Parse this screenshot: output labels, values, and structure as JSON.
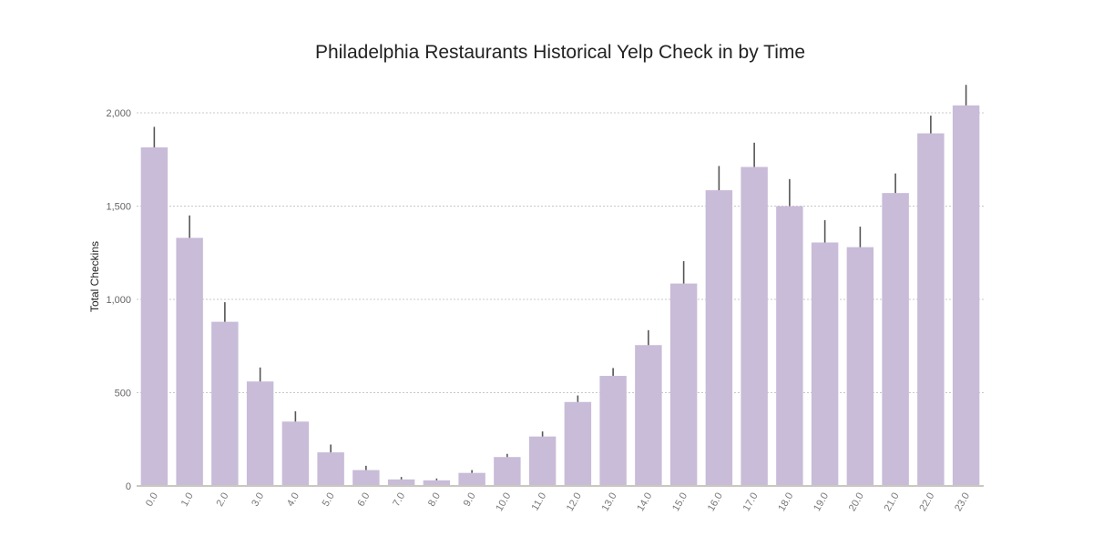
{
  "chart_data": {
    "type": "bar",
    "title": "Philadelphia Restaurants Historical Yelp Check in by Time",
    "xlabel": "",
    "ylabel": "Total Checkins",
    "categories": [
      "0.0",
      "1.0",
      "2.0",
      "3.0",
      "4.0",
      "5.0",
      "6.0",
      "7.0",
      "8.0",
      "9.0",
      "10.0",
      "11.0",
      "12.0",
      "13.0",
      "14.0",
      "15.0",
      "16.0",
      "17.0",
      "18.0",
      "19.0",
      "20.0",
      "21.0",
      "22.0",
      "23.0"
    ],
    "values": [
      1815,
      1330,
      880,
      560,
      345,
      180,
      85,
      35,
      30,
      70,
      155,
      265,
      450,
      590,
      755,
      1085,
      1585,
      1710,
      1500,
      1305,
      1280,
      1570,
      1890,
      2040
    ],
    "error_upper": [
      1925,
      1450,
      985,
      635,
      400,
      222,
      108,
      48,
      40,
      85,
      172,
      292,
      485,
      632,
      835,
      1205,
      1715,
      1840,
      1645,
      1425,
      1390,
      1675,
      1985,
      2150
    ],
    "yticks": [
      "0",
      "500",
      "1,000",
      "1,500",
      "2,000"
    ],
    "ytick_values": [
      0,
      500,
      1000,
      1500,
      2000
    ],
    "ylim": [
      0,
      2000
    ],
    "grid": true,
    "bar_color": "#c8bcd8",
    "errorbar_color": "#555555"
  }
}
